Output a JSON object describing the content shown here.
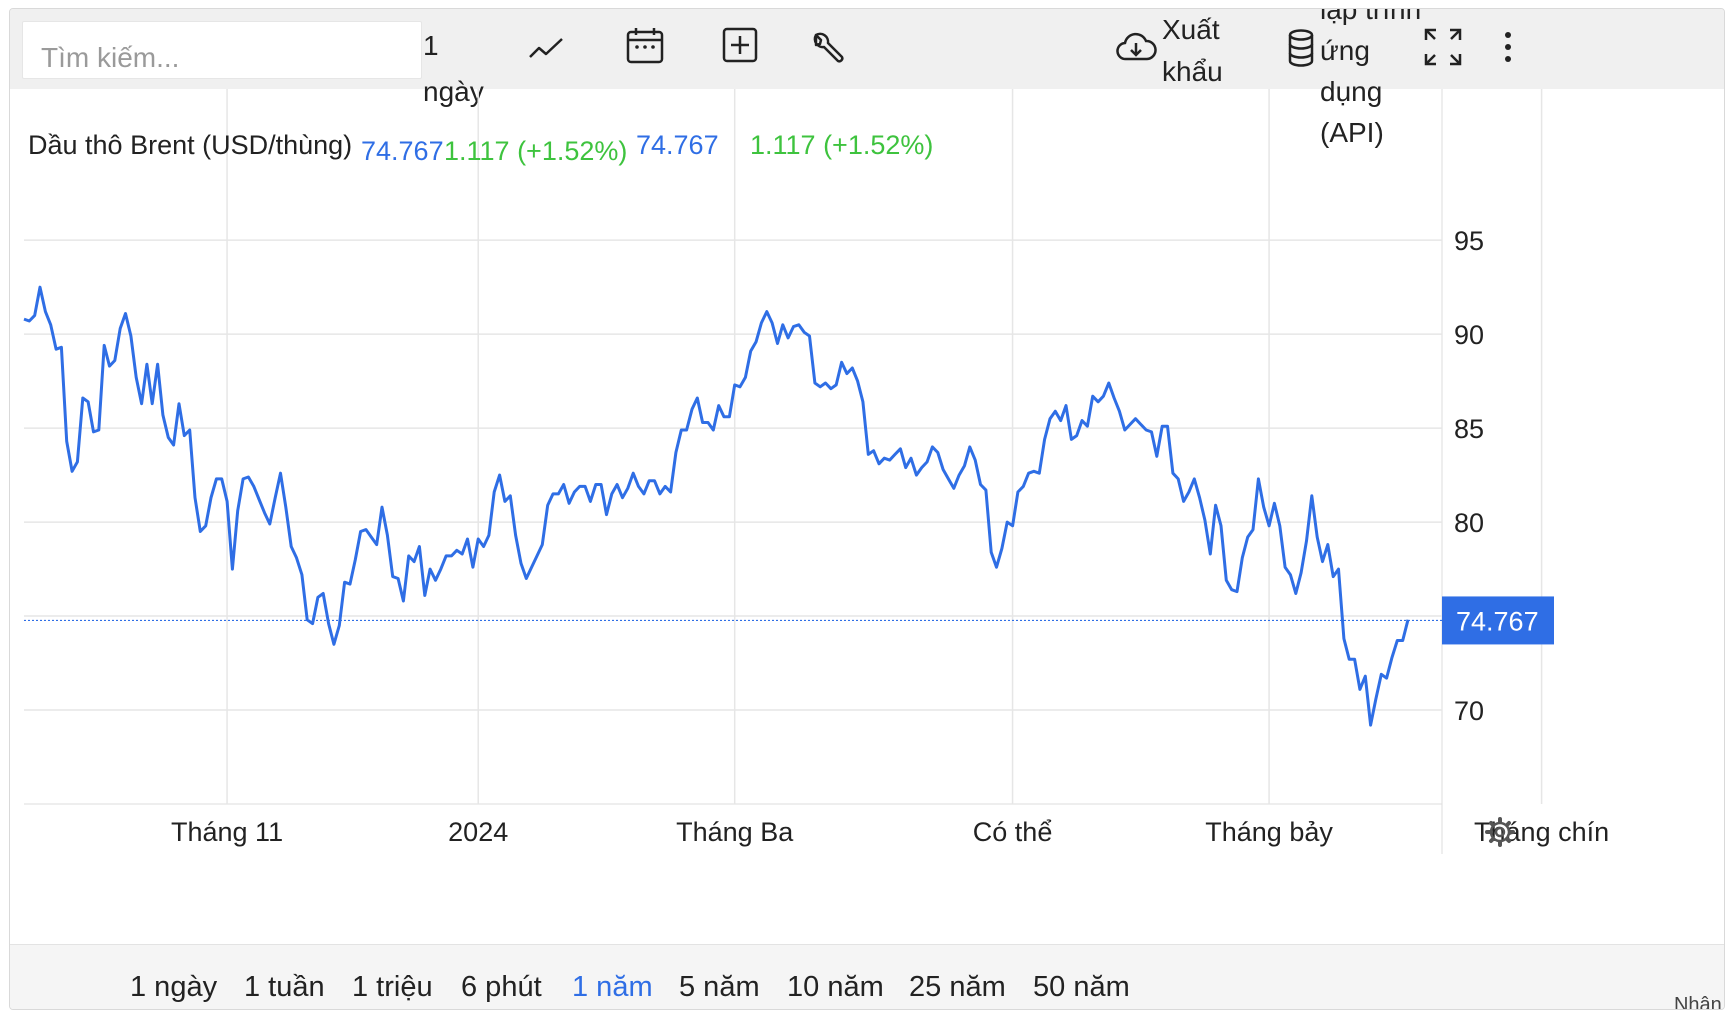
{
  "toolbar": {
    "search_placeholder": "Tìm kiếm...",
    "interval_label": "1 ngày",
    "export_label": "Xuất khẩu",
    "api_label": "lập trình ứng dụng (API)"
  },
  "legend": {
    "title": "Dầu thô Brent (USD/thùng)",
    "value_a": "74.767",
    "change_a": "1.117 (+1.52%)",
    "value_b": "74.767",
    "change_b": "1.117 (+1.52%)"
  },
  "colors": {
    "line": "#2f6ee5",
    "up": "#3ec33e",
    "grid": "#e6e6e6"
  },
  "periods": [
    "1 ngày",
    "1 tuần",
    "1 triệu",
    "6 phút",
    "1 năm",
    "5 năm",
    "10 năm",
    "25 năm",
    "50 năm"
  ],
  "active_period": "1 năm",
  "footnote": "Nhận xét",
  "chart_data": {
    "type": "line",
    "title": "Dầu thô Brent (USD/thùng)",
    "xlabel": "",
    "ylabel": "",
    "ylim": [
      65,
      99
    ],
    "yticks": [
      70,
      75,
      80,
      85,
      90,
      95
    ],
    "ytick_labels": [
      "70",
      "",
      "80",
      "85",
      "90",
      "95"
    ],
    "xticks": [
      {
        "index": 38,
        "label": "Tháng 11"
      },
      {
        "index": 85,
        "label": "2024"
      },
      {
        "index": 133,
        "label": "Tháng Ba"
      },
      {
        "index": 185,
        "label": "Có thể"
      },
      {
        "index": 233,
        "label": "Tháng bảy"
      },
      {
        "index": 284,
        "label": "Tháng chín"
      }
    ],
    "grid": true,
    "last_value": 74.767,
    "last_label": "74.767",
    "series": [
      {
        "values": [
          90.8,
          90.7,
          91.0,
          92.5,
          91.2,
          90.5,
          89.2,
          89.3,
          84.3,
          82.7,
          83.2,
          86.6,
          86.4,
          84.8,
          84.9,
          89.4,
          88.3,
          88.6,
          90.3,
          91.1,
          89.9,
          87.7,
          86.3,
          88.4,
          86.3,
          88.4,
          85.7,
          84.5,
          84.1,
          86.3,
          84.6,
          84.9,
          81.3,
          79.5,
          79.8,
          81.3,
          82.3,
          82.3,
          81.1,
          77.5,
          80.6,
          82.3,
          82.4,
          81.9,
          81.2,
          80.5,
          79.9,
          81.3,
          82.6,
          80.8,
          78.7,
          78.1,
          77.2,
          74.8,
          74.6,
          76.0,
          76.2,
          74.6,
          73.5,
          74.5,
          76.8,
          76.7,
          78.0,
          79.5,
          79.6,
          79.2,
          78.8,
          80.8,
          79.3,
          77.1,
          77.0,
          75.8,
          78.2,
          77.9,
          78.7,
          76.1,
          77.5,
          76.9,
          77.5,
          78.2,
          78.2,
          78.5,
          78.3,
          79.1,
          77.6,
          79.1,
          78.7,
          79.3,
          81.6,
          82.5,
          81.1,
          81.4,
          79.3,
          77.8,
          77.0,
          77.6,
          78.2,
          78.8,
          80.9,
          81.5,
          81.5,
          82.0,
          81.0,
          81.6,
          81.9,
          81.9,
          81.1,
          82.0,
          82.0,
          80.4,
          81.5,
          82.0,
          81.3,
          81.8,
          82.6,
          81.9,
          81.5,
          82.2,
          82.2,
          81.5,
          81.9,
          81.6,
          83.7,
          84.9,
          84.9,
          86.0,
          86.6,
          85.3,
          85.3,
          84.9,
          86.2,
          85.6,
          85.6,
          87.3,
          87.2,
          87.7,
          89.1,
          89.6,
          90.6,
          91.2,
          90.6,
          89.5,
          90.5,
          89.8,
          90.4,
          90.5,
          90.1,
          89.9,
          87.4,
          87.2,
          87.4,
          87.1,
          87.3,
          88.5,
          87.9,
          88.2,
          87.5,
          86.4,
          83.6,
          83.8,
          83.1,
          83.4,
          83.3,
          83.6,
          83.9,
          82.9,
          83.4,
          82.5,
          82.9,
          83.2,
          84.0,
          83.7,
          82.8,
          82.3,
          81.8,
          82.5,
          83.0,
          84.0,
          83.3,
          82.0,
          81.7,
          78.4,
          77.6,
          78.6,
          80.0,
          79.8,
          81.6,
          81.9,
          82.6,
          82.7,
          82.6,
          84.4,
          85.5,
          85.9,
          85.4,
          86.2,
          84.4,
          84.6,
          85.4,
          85.1,
          86.7,
          86.4,
          86.7,
          87.4,
          86.6,
          85.9,
          84.9,
          85.2,
          85.5,
          85.2,
          84.9,
          84.8,
          83.5,
          85.1,
          85.1,
          82.6,
          82.3,
          81.1,
          81.6,
          82.3,
          81.3,
          80.1,
          78.3,
          80.9,
          79.8,
          76.9,
          76.4,
          76.3,
          78.1,
          79.2,
          79.6,
          82.3,
          80.8,
          79.8,
          81.0,
          79.8,
          77.6,
          77.2,
          76.2,
          77.3,
          79.0,
          81.4,
          79.2,
          77.9,
          78.8,
          77.1,
          77.5,
          73.8,
          72.7,
          72.7,
          71.1,
          71.8,
          69.2,
          70.6,
          71.9,
          71.7,
          72.8,
          73.7,
          73.7,
          74.8
        ]
      }
    ]
  }
}
